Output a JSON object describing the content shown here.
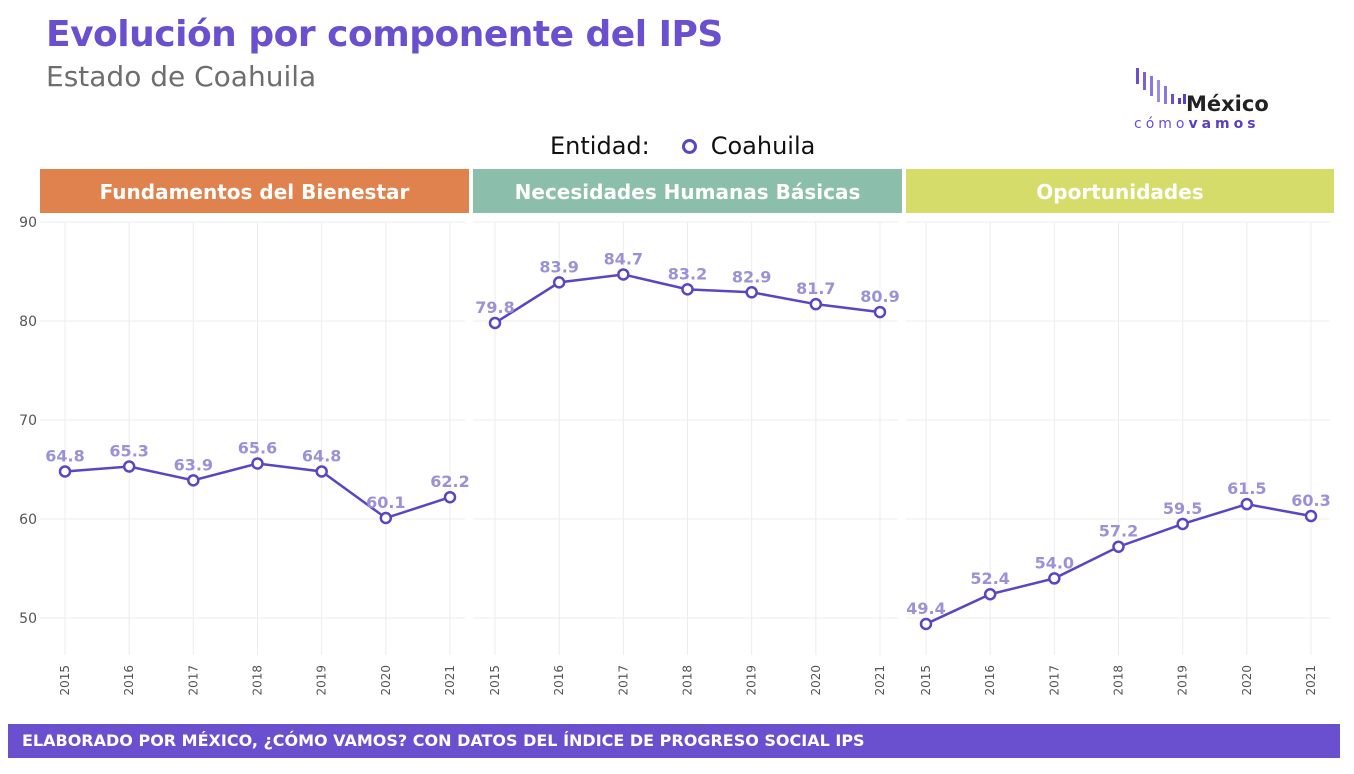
{
  "header": {
    "title": "Evolución por componente del IPS",
    "subtitle": "Estado de Coahuila"
  },
  "logo": {
    "top": "México",
    "bottom_light": "cómo",
    "bottom_bold": "vamos"
  },
  "legend": {
    "label": "Entidad:",
    "entry": "Coahuila"
  },
  "footer": {
    "text": "ELABORADO POR MÉXICO, ¿CÓMO VAMOS? CON DATOS DEL ÍNDICE DE PROGRESO SOCIAL IPS"
  },
  "colors": {
    "title": "#6a4fcf",
    "line": "#5b45c2",
    "data_label": "#9b92d6",
    "footer": "#6a4fcf"
  },
  "chart_data": {
    "type": "line",
    "title": "Evolución por componente del IPS",
    "subtitle": "Estado de Coahuila",
    "xlabel": "",
    "ylabel": "",
    "x": [
      "2015",
      "2016",
      "2017",
      "2018",
      "2019",
      "2020",
      "2021"
    ],
    "ylim": [
      45,
      90
    ],
    "yticks": [
      50,
      60,
      70,
      80,
      90
    ],
    "grid": true,
    "legend": {
      "title": "Entidad:",
      "placement": "top-center",
      "entries": [
        "Coahuila"
      ]
    },
    "facets": [
      {
        "name": "Fundamentos del Bienestar",
        "strip_color": "#e0824e",
        "series": [
          {
            "name": "Coahuila",
            "values": [
              64.8,
              65.3,
              63.9,
              65.6,
              64.8,
              60.1,
              62.2
            ]
          }
        ]
      },
      {
        "name": "Necesidades Humanas Básicas",
        "strip_color": "#8bbfab",
        "series": [
          {
            "name": "Coahuila",
            "values": [
              79.8,
              83.9,
              84.7,
              83.2,
              82.9,
              81.7,
              80.9
            ]
          }
        ]
      },
      {
        "name": "Oportunidades",
        "strip_color": "#d6dc6a",
        "series": [
          {
            "name": "Coahuila",
            "values": [
              49.4,
              52.4,
              54.0,
              57.2,
              59.5,
              61.5,
              60.3
            ]
          }
        ]
      }
    ],
    "labels": [
      [
        "64.8",
        "65.3",
        "63.9",
        "65.6",
        "64.8",
        "60.1",
        "62.2"
      ],
      [
        "79.8",
        "83.9",
        "84.7",
        "83.2",
        "82.9",
        "81.7",
        "80.9"
      ],
      [
        "49.4",
        "52.4",
        "54.0",
        "57.2",
        "59.5",
        "61.5",
        "60.3"
      ]
    ]
  }
}
